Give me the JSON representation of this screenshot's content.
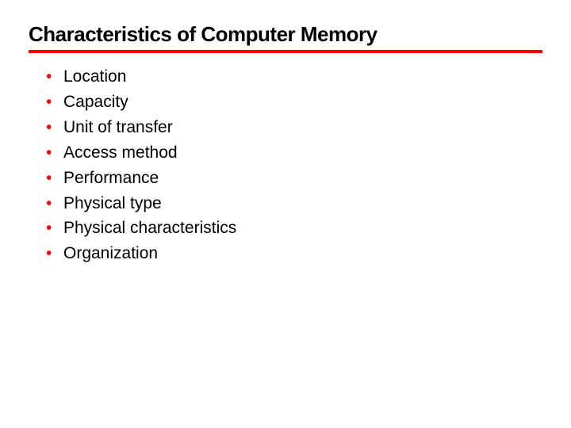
{
  "slide": {
    "title": "Characteristics of Computer Memory",
    "title_color": "#000000",
    "title_fontsize": 26,
    "title_fontweight": 900,
    "underline_color": "#ff0000",
    "underline_height": 4,
    "background_color": "#ffffff",
    "bullet_color": "#ff0000",
    "text_color": "#000000",
    "text_fontsize": 21,
    "line_height": 1.52,
    "items": [
      "Location",
      "Capacity",
      "Unit of transfer",
      "Access method",
      "Performance",
      "Physical type",
      "Physical characteristics",
      "Organization"
    ]
  }
}
